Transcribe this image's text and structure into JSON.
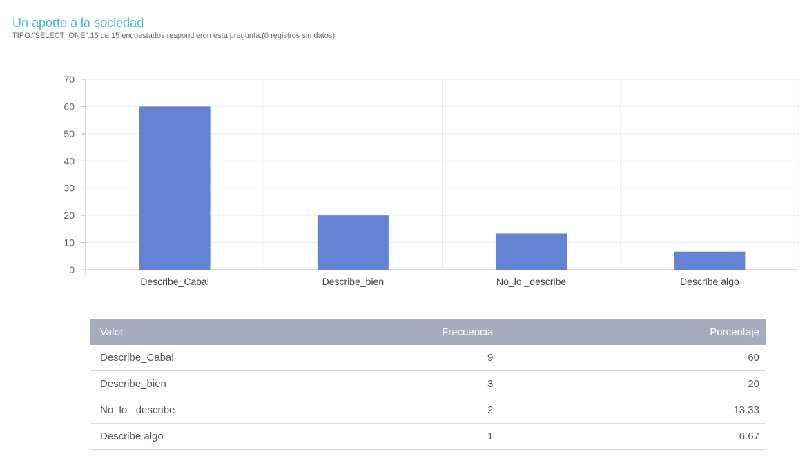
{
  "header": {
    "title": "Un aporte a la sociedad",
    "subtitle": "TIPO:\"SELECT_ONE\".15 de 15 encuestados respondieron esta pregunta.(0 registros sin datos)"
  },
  "chart_data": {
    "type": "bar",
    "categories": [
      "Describe_Cabal",
      "Describe_bien",
      "No_lo _describe",
      "Describe algo"
    ],
    "values": [
      60,
      20,
      13.33,
      6.67
    ],
    "ylim": [
      0,
      70
    ],
    "yticks": [
      0,
      10,
      20,
      30,
      40,
      50,
      60,
      70
    ],
    "grid": true,
    "bar_color": "#6583d4",
    "title": "",
    "xlabel": "",
    "ylabel": ""
  },
  "table": {
    "headers": [
      "Valor",
      "Frecuencia",
      "Porcentaje"
    ],
    "rows": [
      [
        "Describe_Cabal",
        "9",
        "60"
      ],
      [
        "Describe_bien",
        "3",
        "20"
      ],
      [
        "No_lo _describe",
        "2",
        "13.33"
      ],
      [
        "Describe algo",
        "1",
        "6.67"
      ]
    ]
  }
}
